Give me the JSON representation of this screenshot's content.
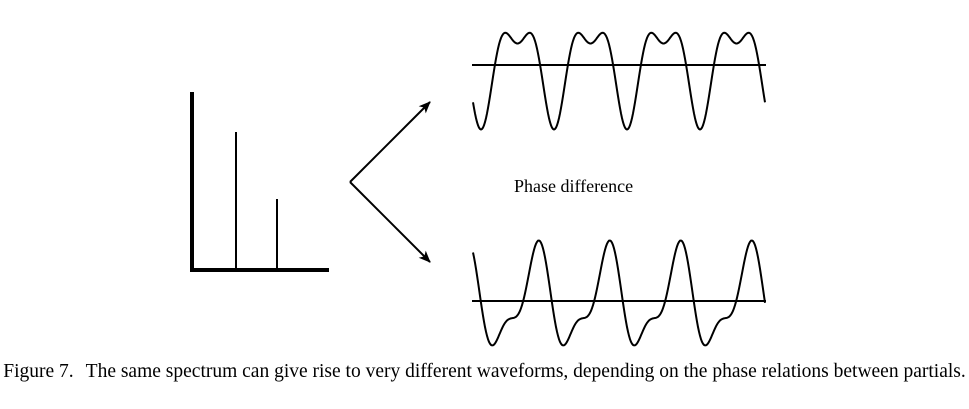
{
  "phase_label": "Phase difference",
  "caption": {
    "label": "Figure 7.",
    "text": "The same spectrum can give rise to very different waveforms, depending on the phase relations between partials."
  }
}
